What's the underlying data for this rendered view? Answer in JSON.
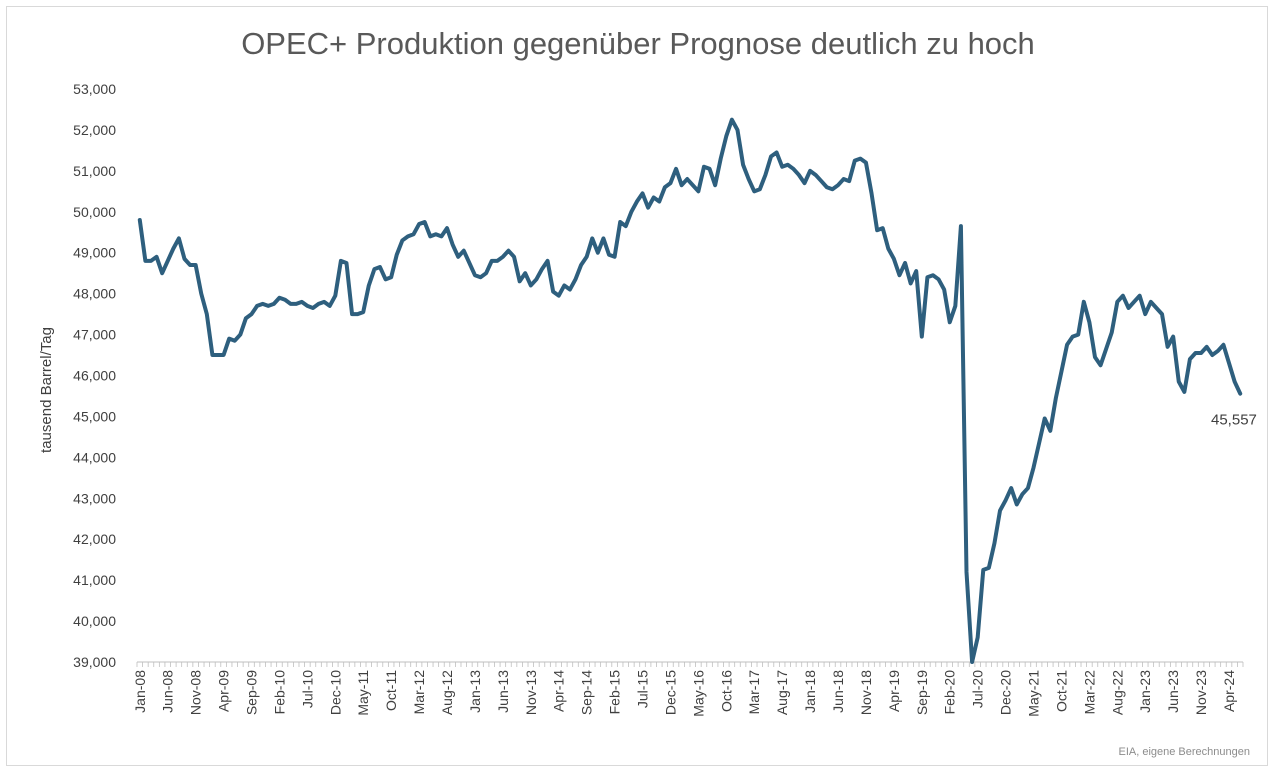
{
  "source_note": "EIA, eigene Berechnungen",
  "colors": {
    "line": "#2e5f7e",
    "text": "#404040",
    "axis": "#bfbfbf"
  },
  "chart_data": {
    "type": "line",
    "title": "OPEC+ Produktion gegenüber Prognose deutlich zu hoch",
    "xlabel": "",
    "ylabel": "tausend Barrel/Tag",
    "ylim": [
      39000,
      53000
    ],
    "y_ticks": [
      "39,000",
      "40,000",
      "41,000",
      "42,000",
      "43,000",
      "44,000",
      "45,000",
      "46,000",
      "47,000",
      "48,000",
      "49,000",
      "50,000",
      "51,000",
      "52,000",
      "53,000"
    ],
    "x_tick_labels": [
      "Jan-08",
      "Jun-08",
      "Nov-08",
      "Apr-09",
      "Sep-09",
      "Feb-10",
      "Jul-10",
      "Dec-10",
      "May-11",
      "Oct-11",
      "Mar-12",
      "Aug-12",
      "Jan-13",
      "Jun-13",
      "Nov-13",
      "Apr-14",
      "Sep-14",
      "Feb-15",
      "Jul-15",
      "Dec-15",
      "May-16",
      "Oct-16",
      "Mar-17",
      "Aug-17",
      "Jan-18",
      "Jun-18",
      "Nov-18",
      "Apr-19",
      "Sep-19",
      "Feb-20",
      "Jul-20",
      "Dec-20",
      "May-21",
      "Oct-21",
      "Mar-22",
      "Aug-22",
      "Jan-23",
      "Jun-23",
      "Nov-23",
      "Apr-24"
    ],
    "x_start": "Jan-08",
    "grid": false,
    "legend": "none",
    "end_label": "45,557",
    "series": [
      {
        "values": [
          49800,
          48800,
          48800,
          48900,
          48500,
          48800,
          49100,
          49350,
          48850,
          48700,
          48700,
          48000,
          47500,
          46500,
          46500,
          46500,
          46900,
          46850,
          47000,
          47400,
          47500,
          47700,
          47750,
          47700,
          47750,
          47900,
          47850,
          47750,
          47750,
          47800,
          47700,
          47650,
          47750,
          47800,
          47700,
          47950,
          48800,
          48750,
          47500,
          47500,
          47550,
          48200,
          48600,
          48650,
          48350,
          48400,
          48950,
          49300,
          49400,
          49450,
          49700,
          49750,
          49400,
          49450,
          49400,
          49600,
          49200,
          48900,
          49050,
          48750,
          48450,
          48400,
          48500,
          48800,
          48800,
          48900,
          49050,
          48900,
          48300,
          48500,
          48200,
          48350,
          48600,
          48800,
          48050,
          47950,
          48200,
          48100,
          48350,
          48700,
          48900,
          49350,
          49000,
          49350,
          48950,
          48900,
          49750,
          49650,
          50000,
          50250,
          50450,
          50100,
          50350,
          50250,
          50600,
          50700,
          51050,
          50650,
          50800,
          50650,
          50500,
          51100,
          51050,
          50650,
          51300,
          51850,
          52250,
          52000,
          51150,
          50800,
          50500,
          50550,
          50900,
          51350,
          51450,
          51100,
          51150,
          51050,
          50900,
          50700,
          51000,
          50900,
          50750,
          50600,
          50550,
          50650,
          50800,
          50750,
          51250,
          51300,
          51200,
          50450,
          49550,
          49600,
          49100,
          48850,
          48450,
          48750,
          48250,
          48550,
          46950,
          48400,
          48450,
          48350,
          48100,
          47300,
          47700,
          49650,
          41200,
          39000,
          39600,
          41250,
          41300,
          41900,
          42700,
          42950,
          43250,
          42850,
          43100,
          43250,
          43750,
          44350,
          44950,
          44650,
          45450,
          46100,
          46750,
          46950,
          47000,
          47800,
          47300,
          46450,
          46250,
          46650,
          47050,
          47800,
          47950,
          47650,
          47800,
          47950,
          47500,
          47800,
          47650,
          47500,
          46700,
          46950,
          45850,
          45600,
          46400,
          46550,
          46550,
          46700,
          46500,
          46600,
          46750,
          46300,
          45850,
          45557
        ]
      }
    ]
  }
}
